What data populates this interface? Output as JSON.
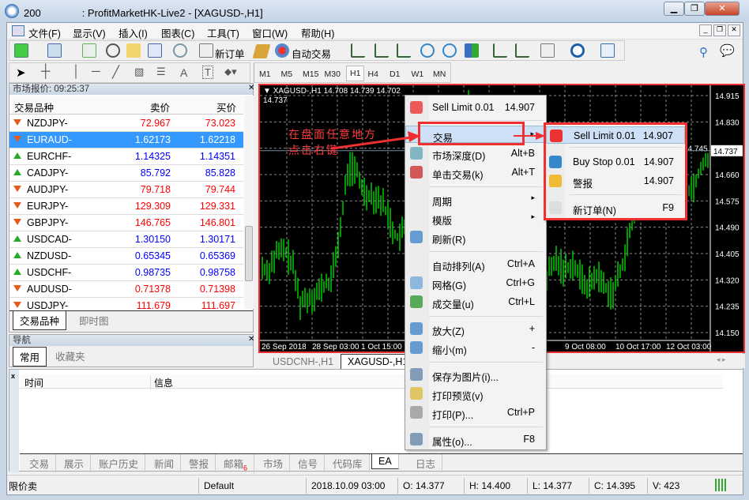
{
  "window": {
    "title": "200　　　　: ProfitMarketHK-Live2 - [XAGUSD-,H1]",
    "min": "▁",
    "restore": "❐",
    "close": "✕"
  },
  "menu": [
    "文件(F)",
    "显示(V)",
    "插入(I)",
    "图表(C)",
    "工具(T)",
    "窗口(W)",
    "帮助(H)"
  ],
  "toolbar": {
    "new_order": "新订单",
    "auto_trade": "自动交易",
    "timeframes": [
      "M1",
      "M5",
      "M15",
      "M30",
      "H1",
      "H4",
      "D1",
      "W1",
      "MN"
    ],
    "active_tf": "H1"
  },
  "market_watch": {
    "title": "市场报价: 09:25:37",
    "col_symbol": "交易品种",
    "col_bid": "卖价",
    "col_ask": "买价",
    "rows": [
      {
        "symbol": "NZDJPY-",
        "bid": "72.967",
        "ask": "73.023",
        "dir": "down"
      },
      {
        "symbol": "EURAUD-",
        "bid": "1.62173",
        "ask": "1.62218",
        "dir": "down",
        "selected": true
      },
      {
        "symbol": "EURCHF-",
        "bid": "1.14325",
        "ask": "1.14351",
        "dir": "up"
      },
      {
        "symbol": "CADJPY-",
        "bid": "85.792",
        "ask": "85.828",
        "dir": "up"
      },
      {
        "symbol": "AUDJPY-",
        "bid": "79.718",
        "ask": "79.744",
        "dir": "down"
      },
      {
        "symbol": "EURJPY-",
        "bid": "129.309",
        "ask": "129.331",
        "dir": "down"
      },
      {
        "symbol": "GBPJPY-",
        "bid": "146.765",
        "ask": "146.801",
        "dir": "down"
      },
      {
        "symbol": "USDCAD-",
        "bid": "1.30150",
        "ask": "1.30171",
        "dir": "up"
      },
      {
        "symbol": "NZDUSD-",
        "bid": "0.65345",
        "ask": "0.65369",
        "dir": "up"
      },
      {
        "symbol": "USDCHF-",
        "bid": "0.98735",
        "ask": "0.98758",
        "dir": "up"
      },
      {
        "symbol": "AUDUSD-",
        "bid": "0.71378",
        "ask": "0.71398",
        "dir": "down"
      },
      {
        "symbol": "USDJPY-",
        "bid": "111.679",
        "ask": "111.697",
        "dir": "down"
      }
    ],
    "tabs": [
      "交易品种",
      "即时图"
    ]
  },
  "navigator": {
    "title": "导航",
    "tabs": [
      "常用",
      "收藏夹"
    ]
  },
  "chart": {
    "header": "XAGUSD-,H1  14.708 14.739 14.702 14.737",
    "current_price": "14.737",
    "price_ticks": [
      "14.915",
      "14.830",
      "14.745",
      "14.660",
      "14.575",
      "14.490",
      "14.405",
      "14.320",
      "14.235",
      "14.150"
    ],
    "time_labels": [
      "26 Sep 2018",
      "28 Sep 03:00",
      "1 Oct 15:00",
      "9 Oct 08:00",
      "10 Oct 17:00",
      "12 Oct 03:00"
    ],
    "annotation": [
      "在盘面任意地方",
      "点击右键"
    ],
    "closes": [
      14.364,
      14.351,
      14.402,
      14.415,
      14.377,
      14.249,
      14.262,
      14.275,
      14.3,
      14.326,
      14.479,
      14.683,
      14.67,
      14.606,
      14.594,
      14.581,
      14.53,
      14.453,
      14.479,
      14.504,
      14.53,
      14.555,
      14.543,
      14.606,
      14.632,
      14.759,
      14.887,
      14.759,
      14.7,
      14.55,
      14.45,
      14.4,
      14.35,
      14.38,
      14.33,
      14.3,
      14.34,
      14.385,
      14.351,
      14.377,
      14.326,
      14.3,
      14.339,
      14.3,
      14.275,
      14.351,
      14.453,
      14.555,
      14.581,
      14.62,
      14.65,
      14.65,
      14.62,
      14.606,
      14.619,
      14.683,
      14.737
    ],
    "bar_color": "#00ff00",
    "tabs": [
      "USDCNH-,H1",
      "XAGUSD-,H1"
    ]
  },
  "context_menu": {
    "items": [
      {
        "label": "Sell Limit 0.01",
        "shortcut": "14.907"
      },
      {
        "label": "交易",
        "shortcut": "▸"
      },
      {
        "label": "市场深度(D)",
        "shortcut": "Alt+B"
      },
      {
        "label": "单击交易(k)",
        "shortcut": "Alt+T"
      },
      {
        "label": "周期",
        "shortcut": "▸"
      },
      {
        "label": "模版",
        "shortcut": "▸"
      },
      {
        "label": "刷新(R)",
        "shortcut": ""
      },
      {
        "label": "自动排列(A)",
        "shortcut": "Ctrl+A"
      },
      {
        "label": "网格(G)",
        "shortcut": "Ctrl+G"
      },
      {
        "label": "成交量(u)",
        "shortcut": "Ctrl+L"
      },
      {
        "label": "放大(Z)",
        "shortcut": "+"
      },
      {
        "label": "缩小(m)",
        "shortcut": "-"
      },
      {
        "label": "保存为图片(i)...",
        "shortcut": ""
      },
      {
        "label": "打印预览(v)",
        "shortcut": ""
      },
      {
        "label": "打印(P)...",
        "shortcut": "Ctrl+P"
      },
      {
        "label": "属性(o)...",
        "shortcut": "F8"
      }
    ]
  },
  "submenu": {
    "items": [
      {
        "label": "Sell Limit 0.01",
        "value": "14.907"
      },
      {
        "label": "Buy Stop 0.01",
        "value": "14.907"
      },
      {
        "label": "警报",
        "value": "14.907"
      },
      {
        "label": "新订单(N)",
        "value": "F9"
      }
    ]
  },
  "terminal": {
    "col_time": "时间",
    "col_info": "信息",
    "tabs": [
      "交易",
      "展示",
      "账户历史",
      "新闻",
      "警报",
      "邮箱",
      "市场",
      "信号",
      "代码库",
      "EA",
      "日志"
    ],
    "mail_badge": "6",
    "active_tab": "EA"
  },
  "status": {
    "mode": "限价卖",
    "profile": "Default",
    "datetime": "2018.10.09 03:00",
    "open": "O: 14.377",
    "high": "H: 14.400",
    "low": "L: 14.377",
    "close": "C: 14.395",
    "volume": "V: 423"
  },
  "colors": {
    "highlight_red": "#f03030",
    "down_price": "#ff0000",
    "up_price": "#0000ff",
    "selection": "#3399ff"
  }
}
